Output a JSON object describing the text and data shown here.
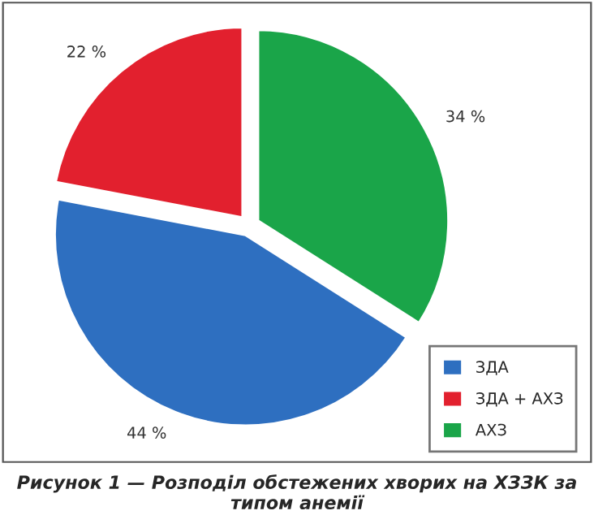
{
  "chart_data": {
    "type": "pie",
    "title": "Рисунок 1 — Розподіл обстежених хворих на ХЗЗК за типом анемії",
    "categories": [
      "ЗДА",
      "ЗДА + АХЗ",
      "АХЗ"
    ],
    "values": [
      44,
      22,
      34
    ],
    "colors": [
      "#2e6fc0",
      "#e2202e",
      "#1aa549"
    ],
    "value_labels": [
      "44 %",
      "22 %",
      "34 %"
    ],
    "legend": "bottom right"
  }
}
